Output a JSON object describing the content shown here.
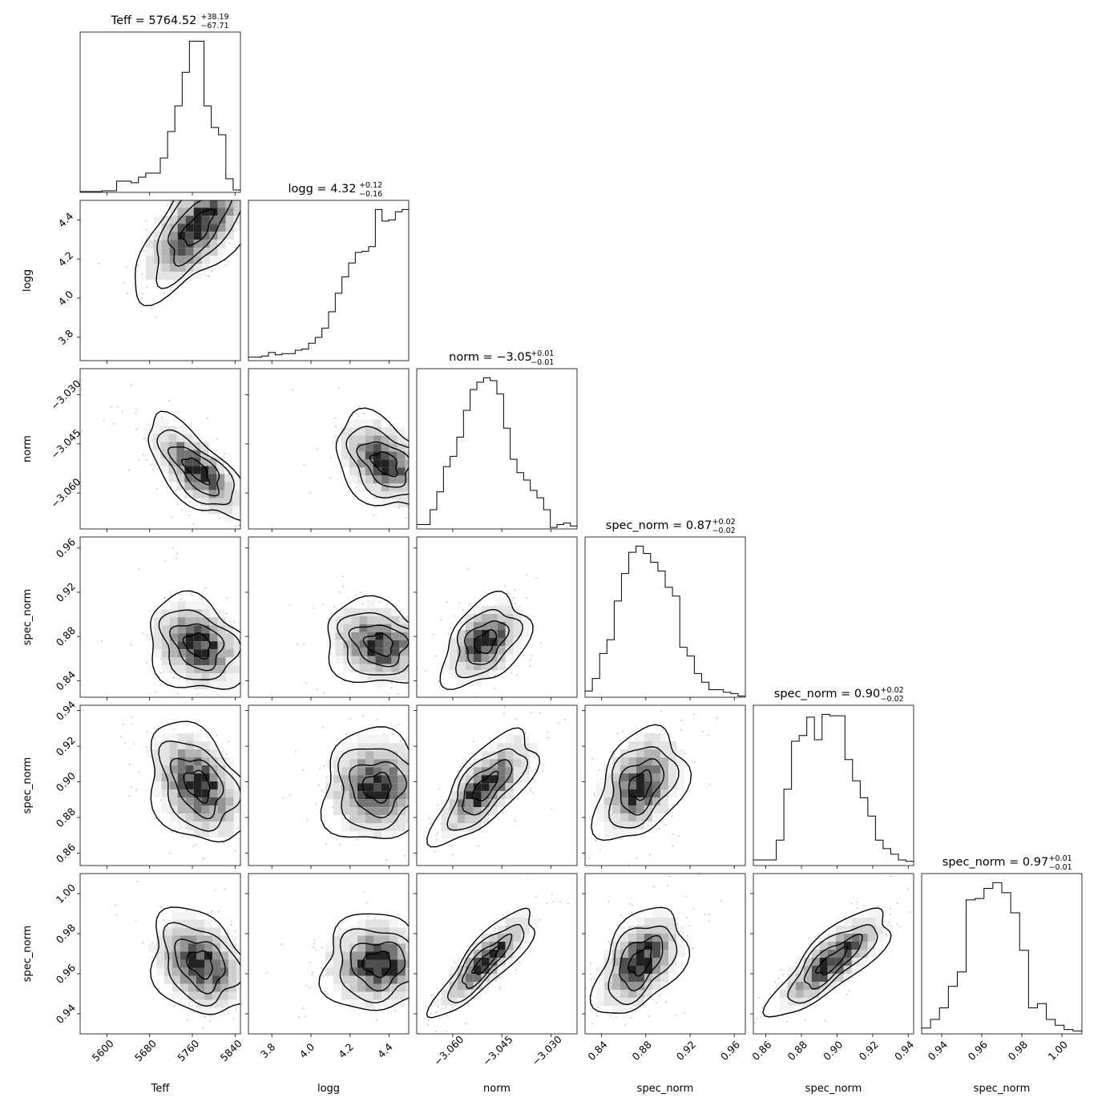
{
  "chart_data": {
    "type": "corner",
    "parameters": [
      {
        "name": "Teff",
        "label": "Teff",
        "range": [
          5550,
          5850
        ],
        "ticks": [
          "5600",
          "5680",
          "5760",
          "5840"
        ],
        "title": {
          "prefix": "Teff = 5764.52",
          "plus": "+38.19",
          "minus": "−67.71"
        },
        "hist": [
          1,
          1,
          1,
          2,
          2,
          14,
          14,
          12,
          19,
          24,
          24,
          43,
          76,
          108,
          150,
          189,
          189,
          108,
          81,
          72,
          17,
          3
        ]
      },
      {
        "name": "logg",
        "label": "logg",
        "range": [
          3.68,
          4.5
        ],
        "ticks": [
          "3.8",
          "4.0",
          "4.2",
          "4.4"
        ],
        "title": {
          "prefix": "logg = 4.32",
          "plus": "+0.12",
          "minus": "−0.16"
        },
        "hist": [
          3,
          3,
          4,
          7,
          5,
          6,
          6,
          9,
          10,
          15,
          20,
          28,
          42,
          58,
          72,
          84,
          93,
          94,
          98,
          130,
          120,
          121,
          128,
          130
        ]
      },
      {
        "name": "norm",
        "label": "norm",
        "range": [
          -3.071,
          -3.022
        ],
        "ticks": [
          "−3.060",
          "−3.045",
          "−3.030"
        ],
        "title": {
          "prefix": "norm = −3.05",
          "plus": "+0.01",
          "minus": "−0.01"
        },
        "hist": [
          3,
          3,
          13,
          25,
          42,
          49,
          62,
          80,
          94,
          99,
          102,
          100,
          91,
          68,
          47,
          38,
          33,
          26,
          21,
          13,
          1,
          3,
          4,
          2
        ]
      },
      {
        "name": "spec_norm",
        "label": "spec_norm",
        "range": [
          0.825,
          0.97
        ],
        "ticks": [
          "0.84",
          "0.88",
          "0.92",
          "0.96"
        ],
        "title": {
          "prefix": "spec_norm = 0.87",
          "plus": "+0.02",
          "minus": "−0.02"
        },
        "hist": [
          5,
          15,
          35,
          46,
          77,
          99,
          116,
          121,
          115,
          108,
          101,
          88,
          81,
          40,
          33,
          19,
          12,
          6,
          6,
          4,
          3,
          1
        ]
      },
      {
        "name": "spec_norm",
        "label": "spec_norm",
        "range": [
          0.853,
          0.943
        ],
        "ticks": [
          "0.86",
          "0.88",
          "0.90",
          "0.92",
          "0.94"
        ],
        "title": {
          "prefix": "spec_norm = 0.90",
          "plus": "+0.02",
          "minus": "−0.02"
        },
        "hist": [
          4,
          4,
          4,
          18,
          54,
          88,
          92,
          105,
          89,
          107,
          106,
          106,
          75,
          60,
          48,
          35,
          18,
          12,
          8,
          4,
          3
        ]
      },
      {
        "name": "spec_norm",
        "label": "spec_norm",
        "range": [
          0.93,
          1.01
        ],
        "ticks": [
          "0.94",
          "0.96",
          "0.98",
          "1.00"
        ],
        "title": {
          "prefix": "spec_norm = 0.97",
          "plus": "+0.01",
          "minus": "−0.01"
        },
        "hist": [
          4,
          10,
          18,
          33,
          43,
          93,
          94,
          101,
          105,
          98,
          84,
          58,
          18,
          21,
          10,
          6,
          3,
          2
        ]
      }
    ],
    "pairs": [
      {
        "row": 1,
        "col": 0,
        "center": [
          5770,
          4.36
        ],
        "spread": [
          48,
          0.15
        ],
        "corr": 0.65
      },
      {
        "row": 2,
        "col": 0,
        "center": [
          5768,
          -3.053
        ],
        "spread": [
          40,
          0.0065
        ],
        "corr": -0.7
      },
      {
        "row": 2,
        "col": 1,
        "center": [
          4.38,
          -3.051
        ],
        "spread": [
          0.11,
          0.006
        ],
        "corr": -0.4
      },
      {
        "row": 3,
        "col": 0,
        "center": [
          5770,
          0.872
        ],
        "spread": [
          40,
          0.018
        ],
        "corr": -0.25
      },
      {
        "row": 3,
        "col": 1,
        "center": [
          4.35,
          0.873
        ],
        "spread": [
          0.12,
          0.016
        ],
        "corr": -0.2
      },
      {
        "row": 3,
        "col": 2,
        "center": [
          -3.05,
          0.875
        ],
        "spread": [
          0.0055,
          0.017
        ],
        "corr": 0.4
      },
      {
        "row": 4,
        "col": 0,
        "center": [
          5770,
          0.898
        ],
        "spread": [
          40,
          0.014
        ],
        "corr": -0.35
      },
      {
        "row": 4,
        "col": 1,
        "center": [
          4.34,
          0.897
        ],
        "spread": [
          0.12,
          0.013
        ],
        "corr": 0.0
      },
      {
        "row": 4,
        "col": 2,
        "center": [
          -3.05,
          0.897
        ],
        "spread": [
          0.0065,
          0.013
        ],
        "corr": 0.7
      },
      {
        "row": 4,
        "col": 3,
        "center": [
          0.875,
          0.898
        ],
        "spread": [
          0.017,
          0.013
        ],
        "corr": 0.35
      },
      {
        "row": 5,
        "col": 0,
        "center": [
          5775,
          0.965
        ],
        "spread": [
          40,
          0.011
        ],
        "corr": -0.3
      },
      {
        "row": 5,
        "col": 1,
        "center": [
          4.34,
          0.965
        ],
        "spread": [
          0.12,
          0.01
        ],
        "corr": 0.0
      },
      {
        "row": 5,
        "col": 2,
        "center": [
          -3.05,
          0.966
        ],
        "spread": [
          0.0065,
          0.011
        ],
        "corr": 0.85
      },
      {
        "row": 5,
        "col": 3,
        "center": [
          0.875,
          0.966
        ],
        "spread": [
          0.017,
          0.011
        ],
        "corr": 0.45
      },
      {
        "row": 5,
        "col": 4,
        "center": [
          0.897,
          0.966
        ],
        "spread": [
          0.014,
          0.011
        ],
        "corr": 0.8
      }
    ],
    "grid": false
  }
}
